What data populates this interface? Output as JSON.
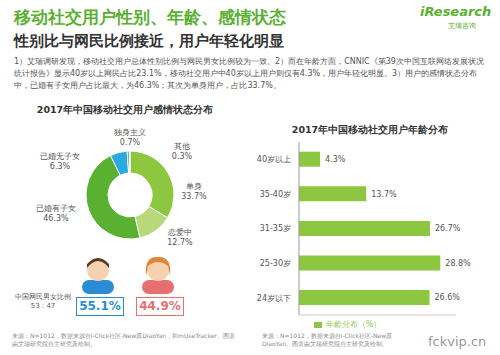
{
  "header": {
    "title": "移动社交用户性别、年龄、感情状态",
    "subtitle": "性别比与网民比例接近，用户年轻化明显",
    "text": "1）艾瑞调研发现，移动社交用户总体性别比例与网民男女比例较为一致。2）而在年龄方面，CNNIC《第39次中国互联网络发展状况统计报告》显示40岁以上网民占比23.1%，移动社交用户中40岁以上用户则仅有4.3%，用户年轻化明显。3）用户的感情状态分布中，已婚有子女用户占比最大，为46.3%；其次为单身用户，占比33.7%。",
    "logo": "iResearch",
    "logo_cn": "艾瑞咨询"
  },
  "chart_data": [
    {
      "type": "pie",
      "title": "2017年中国移动社交用户感情状态分布",
      "categories": [
        "单身",
        "恋爱中",
        "已婚有子女",
        "已婚无子女",
        "独身主义",
        "其他"
      ],
      "values": [
        33.7,
        12.7,
        46.3,
        6.3,
        0.7,
        0.3
      ],
      "value_labels": [
        "33.7%",
        "12.7%",
        "46.3%",
        "6.3%",
        "0.7%",
        "0.3%"
      ],
      "colors": [
        "#8dc63f",
        "#b7d97a",
        "#5ab031",
        "#29abe2",
        "#1f5f8b",
        "#bbbbbb"
      ],
      "data_labels": true
    },
    {
      "type": "bar",
      "title": "2017年中国移动社交用户年龄分布",
      "orientation": "horizontal",
      "categories": [
        "40岁以上",
        "35-40岁",
        "31-35岁",
        "25-30岁",
        "24岁以下"
      ],
      "series": [
        {
          "name": "年龄分布（%）",
          "color": "#8dc63f",
          "values": [
            4.3,
            13.7,
            26.7,
            28.8,
            26.6
          ],
          "value_labels": [
            "4.3%",
            "13.7%",
            "26.7%",
            "28.8%",
            "26.6%"
          ]
        }
      ],
      "xlim": [
        0,
        32
      ],
      "data_labels": true,
      "tick_labels": "y",
      "legend": "bottom"
    }
  ],
  "gender": {
    "label": "中国网民男女比例",
    "ratio": "53 : 47",
    "male": "55.1%",
    "female": "44.9%"
  },
  "sources": [
    "来源：N=1012，数据来源自i-Click社区-New原DiaoYan，和mUseTracker。图表由艾瑞研究院自主研究及绘制。",
    "来源：N=1012，数据来源自i-Click社区-New原DiaoYan。图表由艾瑞研究院自主研究及绘制。"
  ],
  "watermark": "fckvip.cn"
}
